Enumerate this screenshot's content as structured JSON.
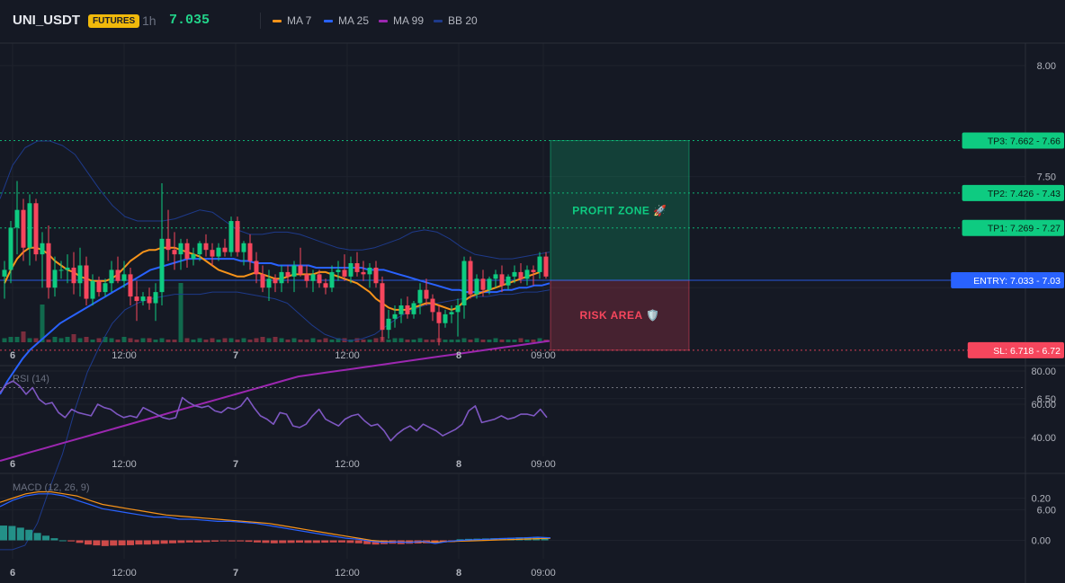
{
  "header": {
    "symbol": "UNI_USDT",
    "badge": "FUTURES",
    "timeframe": "1h",
    "last_price": "7.035",
    "legend": [
      {
        "label": "MA 7",
        "color": "#f7931a"
      },
      {
        "label": "MA 25",
        "color": "#2962ff"
      },
      {
        "label": "MA 99",
        "color": "#9c27b0"
      },
      {
        "label": "BB 20",
        "color": "#1e3a8a"
      }
    ]
  },
  "colors": {
    "up": "#0ecb81",
    "down": "#f6465d",
    "ma7": "#f7931a",
    "ma25": "#2962ff",
    "ma99": "#9c27b0",
    "bb": "#1e3a8a",
    "rsi": "#7e57c2",
    "macd": "#2962ff",
    "signal": "#f7931a"
  },
  "chart_data": [
    {
      "type": "candlestick",
      "x_ticks": [
        "6",
        "12:00",
        "7",
        "12:00",
        "8",
        "09:00"
      ],
      "y_ticks": [
        "8.00",
        "7.50",
        "6.50",
        "6.00"
      ],
      "ylim": [
        5.52,
        8.05
      ],
      "levels": [
        {
          "name": "TP3",
          "value": 7.662,
          "label": "TP3: 7.662",
          "axis": "7.66",
          "color": "#0ecb81",
          "style": "dotted"
        },
        {
          "name": "TP2",
          "value": 7.426,
          "label": "TP2: 7.426",
          "axis": "7.43",
          "color": "#0ecb81",
          "style": "dotted"
        },
        {
          "name": "TP1",
          "value": 7.269,
          "label": "TP1: 7.269",
          "axis": "7.27",
          "color": "#0ecb81",
          "style": "dotted"
        },
        {
          "name": "ENTRY",
          "value": 7.033,
          "label": "ENTRY: 7.033",
          "axis": "7.03",
          "color": "#2962ff",
          "style": "solid"
        },
        {
          "name": "SL",
          "value": 6.718,
          "label": "SL: 6.718",
          "axis": "6.72",
          "color": "#f6465d",
          "style": "dotted"
        }
      ],
      "zones": {
        "profit": "PROFIT ZONE 🚀",
        "risk": "RISK AREA 🛡️"
      },
      "ohlc": [
        [
          7.05,
          7.12,
          6.95,
          7.08
        ],
        [
          7.08,
          7.3,
          7.02,
          7.27
        ],
        [
          7.27,
          7.48,
          7.15,
          7.35
        ],
        [
          7.35,
          7.4,
          7.12,
          7.18
        ],
        [
          7.18,
          7.42,
          7.1,
          7.38
        ],
        [
          7.38,
          7.4,
          7.12,
          7.15
        ],
        [
          7.15,
          7.25,
          7.0,
          7.2
        ],
        [
          7.2,
          7.28,
          6.95,
          7.0
        ],
        [
          7.0,
          7.14,
          6.96,
          7.08
        ],
        [
          7.08,
          7.12,
          7.04,
          7.08
        ],
        [
          7.08,
          7.15,
          7.02,
          7.09
        ],
        [
          7.09,
          7.16,
          6.97,
          7.02
        ],
        [
          7.02,
          7.18,
          6.96,
          7.1
        ],
        [
          7.1,
          7.14,
          6.92,
          6.95
        ],
        [
          6.95,
          7.06,
          6.92,
          7.03
        ],
        [
          7.03,
          7.05,
          6.96,
          6.98
        ],
        [
          6.98,
          7.04,
          6.96,
          7.02
        ],
        [
          7.02,
          7.12,
          6.98,
          7.08
        ],
        [
          7.08,
          7.14,
          7.02,
          7.03
        ],
        [
          7.03,
          7.12,
          7.0,
          7.06
        ],
        [
          7.06,
          7.09,
          6.92,
          6.96
        ],
        [
          6.96,
          7.03,
          6.85,
          6.94
        ],
        [
          6.94,
          6.98,
          6.92,
          6.96
        ],
        [
          6.96,
          7.0,
          6.9,
          6.93
        ],
        [
          6.93,
          7.02,
          6.85,
          6.98
        ],
        [
          6.98,
          7.47,
          6.92,
          7.22
        ],
        [
          7.22,
          7.35,
          7.12,
          7.17
        ],
        [
          7.17,
          7.25,
          7.08,
          7.15
        ],
        [
          7.15,
          7.22,
          7.08,
          7.2
        ],
        [
          7.2,
          7.22,
          7.09,
          7.13
        ],
        [
          7.13,
          7.18,
          7.1,
          7.15
        ],
        [
          7.15,
          7.21,
          7.12,
          7.2
        ],
        [
          7.2,
          7.24,
          7.14,
          7.17
        ],
        [
          7.17,
          7.2,
          7.1,
          7.14
        ],
        [
          7.14,
          7.2,
          7.12,
          7.18
        ],
        [
          7.18,
          7.22,
          7.14,
          7.16
        ],
        [
          7.16,
          7.32,
          7.14,
          7.3
        ],
        [
          7.3,
          7.32,
          7.14,
          7.16
        ],
        [
          7.16,
          7.21,
          7.1,
          7.2
        ],
        [
          7.2,
          7.24,
          7.08,
          7.12
        ],
        [
          7.12,
          7.16,
          7.02,
          7.06
        ],
        [
          7.06,
          7.1,
          6.98,
          7.0
        ],
        [
          7.0,
          7.08,
          6.94,
          7.04
        ],
        [
          7.04,
          7.06,
          6.98,
          7.02
        ],
        [
          7.02,
          7.1,
          6.98,
          7.07
        ],
        [
          7.07,
          7.1,
          7.02,
          7.05
        ],
        [
          7.05,
          7.12,
          6.98,
          7.1
        ],
        [
          7.1,
          7.18,
          7.05,
          7.06
        ],
        [
          7.06,
          7.1,
          7.0,
          7.03
        ],
        [
          7.03,
          7.08,
          6.98,
          7.06
        ],
        [
          7.06,
          7.08,
          7.0,
          7.02
        ],
        [
          7.02,
          7.04,
          6.97,
          7.0
        ],
        [
          7.0,
          7.1,
          6.98,
          7.07
        ],
        [
          7.07,
          7.12,
          7.03,
          7.08
        ],
        [
          7.08,
          7.15,
          7.03,
          7.05
        ],
        [
          7.05,
          7.14,
          7.02,
          7.11
        ],
        [
          7.11,
          7.16,
          7.05,
          7.07
        ],
        [
          7.07,
          7.12,
          7.03,
          7.06
        ],
        [
          7.06,
          7.11,
          7.0,
          7.09
        ],
        [
          7.09,
          7.12,
          7.0,
          7.02
        ],
        [
          7.02,
          7.05,
          6.76,
          6.81
        ],
        [
          6.81,
          6.9,
          6.77,
          6.86
        ],
        [
          6.86,
          6.92,
          6.82,
          6.88
        ],
        [
          6.88,
          6.95,
          6.84,
          6.92
        ],
        [
          6.92,
          6.96,
          6.86,
          6.88
        ],
        [
          6.88,
          6.94,
          6.86,
          6.93
        ],
        [
          6.93,
          7.02,
          6.88,
          6.99
        ],
        [
          6.99,
          7.04,
          6.92,
          6.95
        ],
        [
          6.95,
          6.97,
          6.85,
          6.89
        ],
        [
          6.89,
          6.92,
          6.74,
          6.84
        ],
        [
          6.84,
          6.9,
          6.82,
          6.88
        ],
        [
          6.88,
          6.92,
          6.84,
          6.89
        ],
        [
          6.89,
          6.95,
          6.78,
          6.92
        ],
        [
          6.92,
          7.14,
          6.86,
          7.12
        ],
        [
          7.12,
          7.14,
          6.95,
          6.97
        ],
        [
          6.97,
          7.06,
          6.95,
          7.04
        ],
        [
          7.04,
          7.08,
          6.96,
          6.99
        ],
        [
          6.99,
          7.05,
          6.97,
          7.04
        ],
        [
          7.04,
          7.08,
          7.0,
          7.06
        ],
        [
          7.06,
          7.1,
          6.98,
          7.01
        ],
        [
          7.01,
          7.06,
          6.99,
          7.05
        ],
        [
          7.05,
          7.1,
          7.02,
          7.07
        ],
        [
          7.07,
          7.11,
          7.02,
          7.04
        ],
        [
          7.04,
          7.1,
          7.01,
          7.08
        ],
        [
          7.08,
          7.1,
          7.01,
          7.07
        ],
        [
          7.07,
          7.16,
          7.04,
          7.14
        ],
        [
          7.14,
          7.16,
          7.04,
          7.05
        ]
      ],
      "volume": [
        3,
        4,
        4,
        8,
        3,
        3,
        28,
        2,
        4,
        3,
        4,
        6,
        3,
        4,
        2,
        3,
        4,
        3,
        2,
        4,
        3,
        2,
        3,
        3,
        2,
        3,
        2,
        2,
        44,
        3,
        2,
        3,
        2,
        3,
        2,
        3,
        3,
        2,
        3,
        2,
        3,
        4,
        3,
        4,
        3,
        2,
        3,
        2,
        2,
        3,
        2,
        3,
        2,
        3,
        3,
        2,
        3,
        2,
        2,
        3,
        4,
        2,
        3,
        3,
        2,
        2,
        3,
        2,
        2,
        3,
        2,
        2,
        2,
        3,
        2,
        3,
        2,
        2,
        3,
        2,
        2,
        2,
        3,
        2,
        2,
        3,
        2
      ],
      "ma7": [
        7.02,
        7.08,
        7.13,
        7.16,
        7.18,
        7.18,
        7.17,
        7.15,
        7.12,
        7.1,
        7.08,
        7.07,
        7.05,
        7.04,
        7.03,
        7.03,
        7.03,
        7.04,
        7.06,
        7.09,
        7.12,
        7.14,
        7.16,
        7.17,
        7.17,
        7.18,
        7.18,
        7.18,
        7.17,
        7.16,
        7.15,
        7.14,
        7.12,
        7.1,
        7.08,
        7.07,
        7.06,
        7.05,
        7.05,
        7.06,
        7.07,
        7.06,
        7.05,
        7.04,
        7.04,
        7.05,
        7.06,
        7.06,
        7.06,
        7.06,
        7.07,
        7.07,
        7.06,
        7.05,
        7.04,
        7.03,
        7.02,
        7.0,
        6.98,
        6.95,
        6.93,
        6.91,
        6.9,
        6.9,
        6.9,
        6.91,
        6.92,
        6.93,
        6.93,
        6.92,
        6.91,
        6.9,
        6.91,
        6.94,
        6.96,
        6.97,
        6.98,
        6.99,
        7.0,
        7.01,
        7.02,
        7.03,
        7.04,
        7.05,
        7.06,
        7.07
      ],
      "ma25": [
        6.52,
        6.58,
        6.63,
        6.68,
        6.72,
        6.75,
        6.78,
        6.81,
        6.84,
        6.86,
        6.88,
        6.9,
        6.92,
        6.94,
        6.96,
        6.98,
        7.0,
        7.02,
        7.04,
        7.06,
        7.08,
        7.09,
        7.1,
        7.11,
        7.12,
        7.13,
        7.13,
        7.13,
        7.13,
        7.13,
        7.13,
        7.13,
        7.12,
        7.12,
        7.11,
        7.11,
        7.11,
        7.1,
        7.1,
        7.1,
        7.1,
        7.1,
        7.09,
        7.09,
        7.09,
        7.09,
        7.09,
        7.09,
        7.09,
        7.08,
        7.08,
        7.08,
        7.07,
        7.06,
        7.05,
        7.04,
        7.03,
        7.02,
        7.01,
        7.0,
        6.99,
        6.99,
        6.98,
        6.98,
        6.98,
        6.98,
        6.98,
        6.99,
        6.99,
        7.0,
        7.0,
        7.01,
        7.01,
        7.02
      ],
      "ma99": [
        6.22,
        6.24,
        6.26,
        6.28,
        6.3,
        6.32,
        6.34,
        6.36,
        6.38,
        6.4,
        6.42,
        6.44,
        6.46,
        6.48,
        6.5,
        6.52,
        6.54,
        6.56,
        6.58,
        6.6,
        6.61,
        6.62,
        6.63,
        6.64,
        6.65,
        6.66,
        6.67,
        6.68,
        6.69,
        6.7,
        6.71,
        6.72,
        6.73,
        6.74,
        6.75,
        6.76
      ],
      "bb_upper": [
        7.4,
        7.55,
        7.63,
        7.66,
        7.66,
        7.64,
        7.6,
        7.52,
        7.44,
        7.37,
        7.32,
        7.3,
        7.3,
        7.3,
        7.31,
        7.33,
        7.35,
        7.34,
        7.3,
        7.26,
        7.24,
        7.24,
        7.25,
        7.25,
        7.24,
        7.22,
        7.2,
        7.18,
        7.17,
        7.17,
        7.18,
        7.2,
        7.22,
        7.25,
        7.26,
        7.25,
        7.22,
        7.18,
        7.15,
        7.14,
        7.13,
        7.13,
        7.14,
        7.15,
        7.16
      ],
      "bb_lower": [
        5.82,
        5.82,
        5.84,
        5.94,
        6.1,
        6.25,
        6.45,
        6.62,
        6.74,
        6.84,
        6.9,
        6.93,
        6.95,
        6.96,
        6.97,
        6.97,
        6.97,
        6.98,
        6.98,
        6.98,
        6.97,
        6.96,
        6.95,
        6.93,
        6.88,
        6.83,
        6.79,
        6.77,
        6.76,
        6.77,
        6.79,
        6.83,
        6.87,
        6.9,
        6.92,
        6.93,
        6.94,
        6.95,
        6.96,
        6.96,
        6.97,
        6.97,
        6.98,
        6.98,
        6.99
      ]
    },
    {
      "type": "line",
      "title": "RSI (14)",
      "y_ticks": [
        "80.00",
        "60.00",
        "40.00"
      ],
      "ylim": [
        33,
        82
      ],
      "overbought": 70,
      "values": [
        67,
        72,
        74,
        71,
        66,
        70,
        63,
        60,
        61,
        55,
        52,
        57,
        55,
        54,
        53,
        60,
        58,
        57,
        54,
        52,
        53,
        52,
        58,
        56,
        54,
        52,
        51,
        52,
        64,
        61,
        59,
        58,
        59,
        56,
        55,
        58,
        57,
        59,
        64,
        58,
        53,
        51,
        48,
        55,
        54,
        47,
        46,
        48,
        53,
        57,
        51,
        49,
        47,
        51,
        53,
        54,
        50,
        47,
        48,
        44,
        38,
        42,
        45,
        47,
        44,
        48,
        46,
        44,
        41,
        43,
        45,
        48,
        56,
        59,
        49,
        50,
        51,
        53,
        51,
        52,
        54,
        54,
        53,
        57,
        52
      ],
      "x_ticks": [
        "6",
        "12:00",
        "7",
        "12:00",
        "8",
        "09:00"
      ]
    },
    {
      "type": "bar",
      "title": "MACD (12, 26, 9)",
      "y_ticks": [
        "0.20",
        "0.00"
      ],
      "ylim": [
        -0.08,
        0.26
      ],
      "histogram": [
        0.07,
        0.068,
        0.06,
        0.05,
        0.035,
        0.022,
        0.01,
        0.0,
        -0.005,
        -0.012,
        -0.02,
        -0.024,
        -0.027,
        -0.025,
        -0.024,
        -0.023,
        -0.02,
        -0.02,
        -0.018,
        -0.016,
        -0.014,
        -0.012,
        -0.01,
        -0.01,
        -0.008,
        -0.006,
        -0.004,
        -0.005,
        -0.005,
        -0.007,
        -0.01,
        -0.012,
        -0.014,
        -0.013,
        -0.012,
        -0.011,
        -0.012,
        -0.012,
        -0.011,
        -0.01,
        -0.01,
        -0.012,
        -0.014,
        -0.018,
        -0.02,
        -0.018,
        -0.016,
        -0.018,
        -0.016,
        -0.015,
        -0.014,
        -0.012,
        -0.01,
        -0.008,
        0.005,
        0.007,
        0.008,
        0.009,
        0.01,
        0.011,
        0.012,
        0.014,
        0.015,
        0.016,
        0.015
      ],
      "macd": [
        0.16,
        0.19,
        0.21,
        0.22,
        0.22,
        0.21,
        0.19,
        0.17,
        0.15,
        0.14,
        0.13,
        0.12,
        0.11,
        0.11,
        0.1,
        0.1,
        0.095,
        0.09,
        0.09,
        0.085,
        0.08,
        0.07,
        0.06,
        0.05,
        0.04,
        0.03,
        0.02,
        0.01,
        0.005,
        -0.005,
        -0.01,
        -0.008,
        -0.01,
        -0.005,
        -0.015,
        -0.005,
        0.0,
        0.003,
        0.005,
        0.008,
        0.01,
        0.012,
        0.015,
        0.012
      ],
      "signal": [
        0.18,
        0.2,
        0.22,
        0.23,
        0.23,
        0.22,
        0.21,
        0.19,
        0.17,
        0.16,
        0.15,
        0.14,
        0.13,
        0.12,
        0.115,
        0.11,
        0.105,
        0.1,
        0.095,
        0.09,
        0.085,
        0.08,
        0.07,
        0.06,
        0.05,
        0.04,
        0.03,
        0.02,
        0.01,
        0.0,
        -0.005,
        -0.008,
        -0.008,
        -0.008,
        -0.008,
        -0.006,
        -0.004,
        -0.002,
        0.0,
        0.002,
        0.004,
        0.006,
        0.008,
        0.01
      ],
      "x_ticks": [
        "6",
        "12:00",
        "7",
        "12:00",
        "8",
        "09:00"
      ]
    }
  ]
}
